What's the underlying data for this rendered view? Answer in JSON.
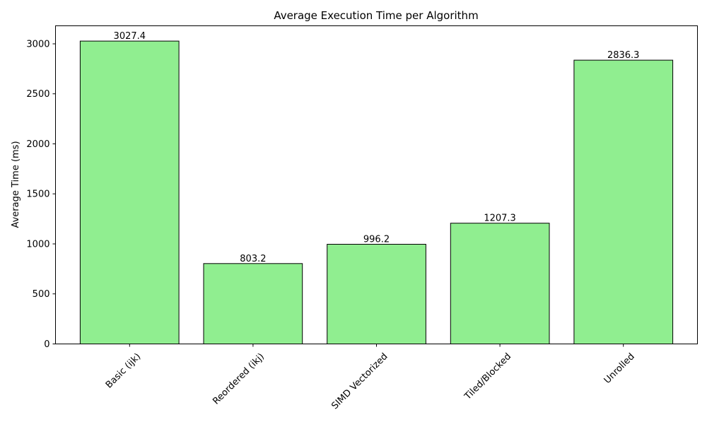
{
  "chart_data": {
    "type": "bar",
    "title": "Average Execution Time per Algorithm",
    "xlabel": "",
    "ylabel": "Average Time (ms)",
    "categories": [
      "Basic (ijk)",
      "Reordered (ikj)",
      "SIMD Vectorized",
      "Tiled/Blocked",
      "Unrolled"
    ],
    "values": [
      3027.4,
      803.2,
      996.2,
      1207.3,
      2836.3
    ],
    "value_labels": [
      "3027.4",
      "803.2",
      "996.2",
      "1207.3",
      "2836.3"
    ],
    "ylim": [
      0,
      3180
    ],
    "yticks": [
      0,
      500,
      1000,
      1500,
      2000,
      2500,
      3000
    ],
    "ytick_labels": [
      "0",
      "500",
      "1000",
      "1500",
      "2000",
      "2500",
      "3000"
    ],
    "grid": false,
    "legend": "none",
    "colors": {
      "bar_fill": "#90ee90",
      "bar_edge": "#000000",
      "axis": "#000000"
    }
  }
}
